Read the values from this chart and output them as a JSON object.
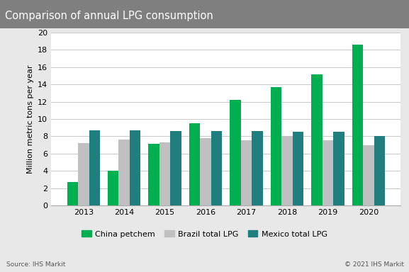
{
  "title": "Comparison of annual LPG consumption",
  "ylabel": "Million metric tons per year",
  "years": [
    2013,
    2014,
    2015,
    2016,
    2017,
    2018,
    2019,
    2020
  ],
  "china_petchem": [
    2.7,
    4.0,
    7.1,
    9.5,
    12.2,
    13.7,
    15.2,
    18.6
  ],
  "brazil_total_lpg": [
    7.2,
    7.6,
    7.3,
    7.8,
    7.5,
    8.0,
    7.5,
    7.0
  ],
  "mexico_total_lpg": [
    8.7,
    8.7,
    8.6,
    8.6,
    8.6,
    8.5,
    8.5,
    8.0
  ],
  "china_color": "#00b050",
  "brazil_color": "#c0c0c0",
  "mexico_color": "#1f7f7f",
  "ylim": [
    0,
    20
  ],
  "yticks": [
    0,
    2,
    4,
    6,
    8,
    10,
    12,
    14,
    16,
    18,
    20
  ],
  "legend_labels": [
    "China petchem",
    "Brazil total LPG",
    "Mexico total LPG"
  ],
  "source_text": "Source: IHS Markit",
  "copyright_text": "© 2021 IHS Markit",
  "title_bg_color": "#7f7f7f",
  "title_text_color": "#ffffff",
  "figure_bg_color": "#e8e8e8",
  "plot_bg_color": "#ffffff",
  "grid_color": "#c8c8c8",
  "bar_width": 0.27,
  "title_fontsize": 10.5,
  "tick_fontsize": 8,
  "ylabel_fontsize": 8
}
